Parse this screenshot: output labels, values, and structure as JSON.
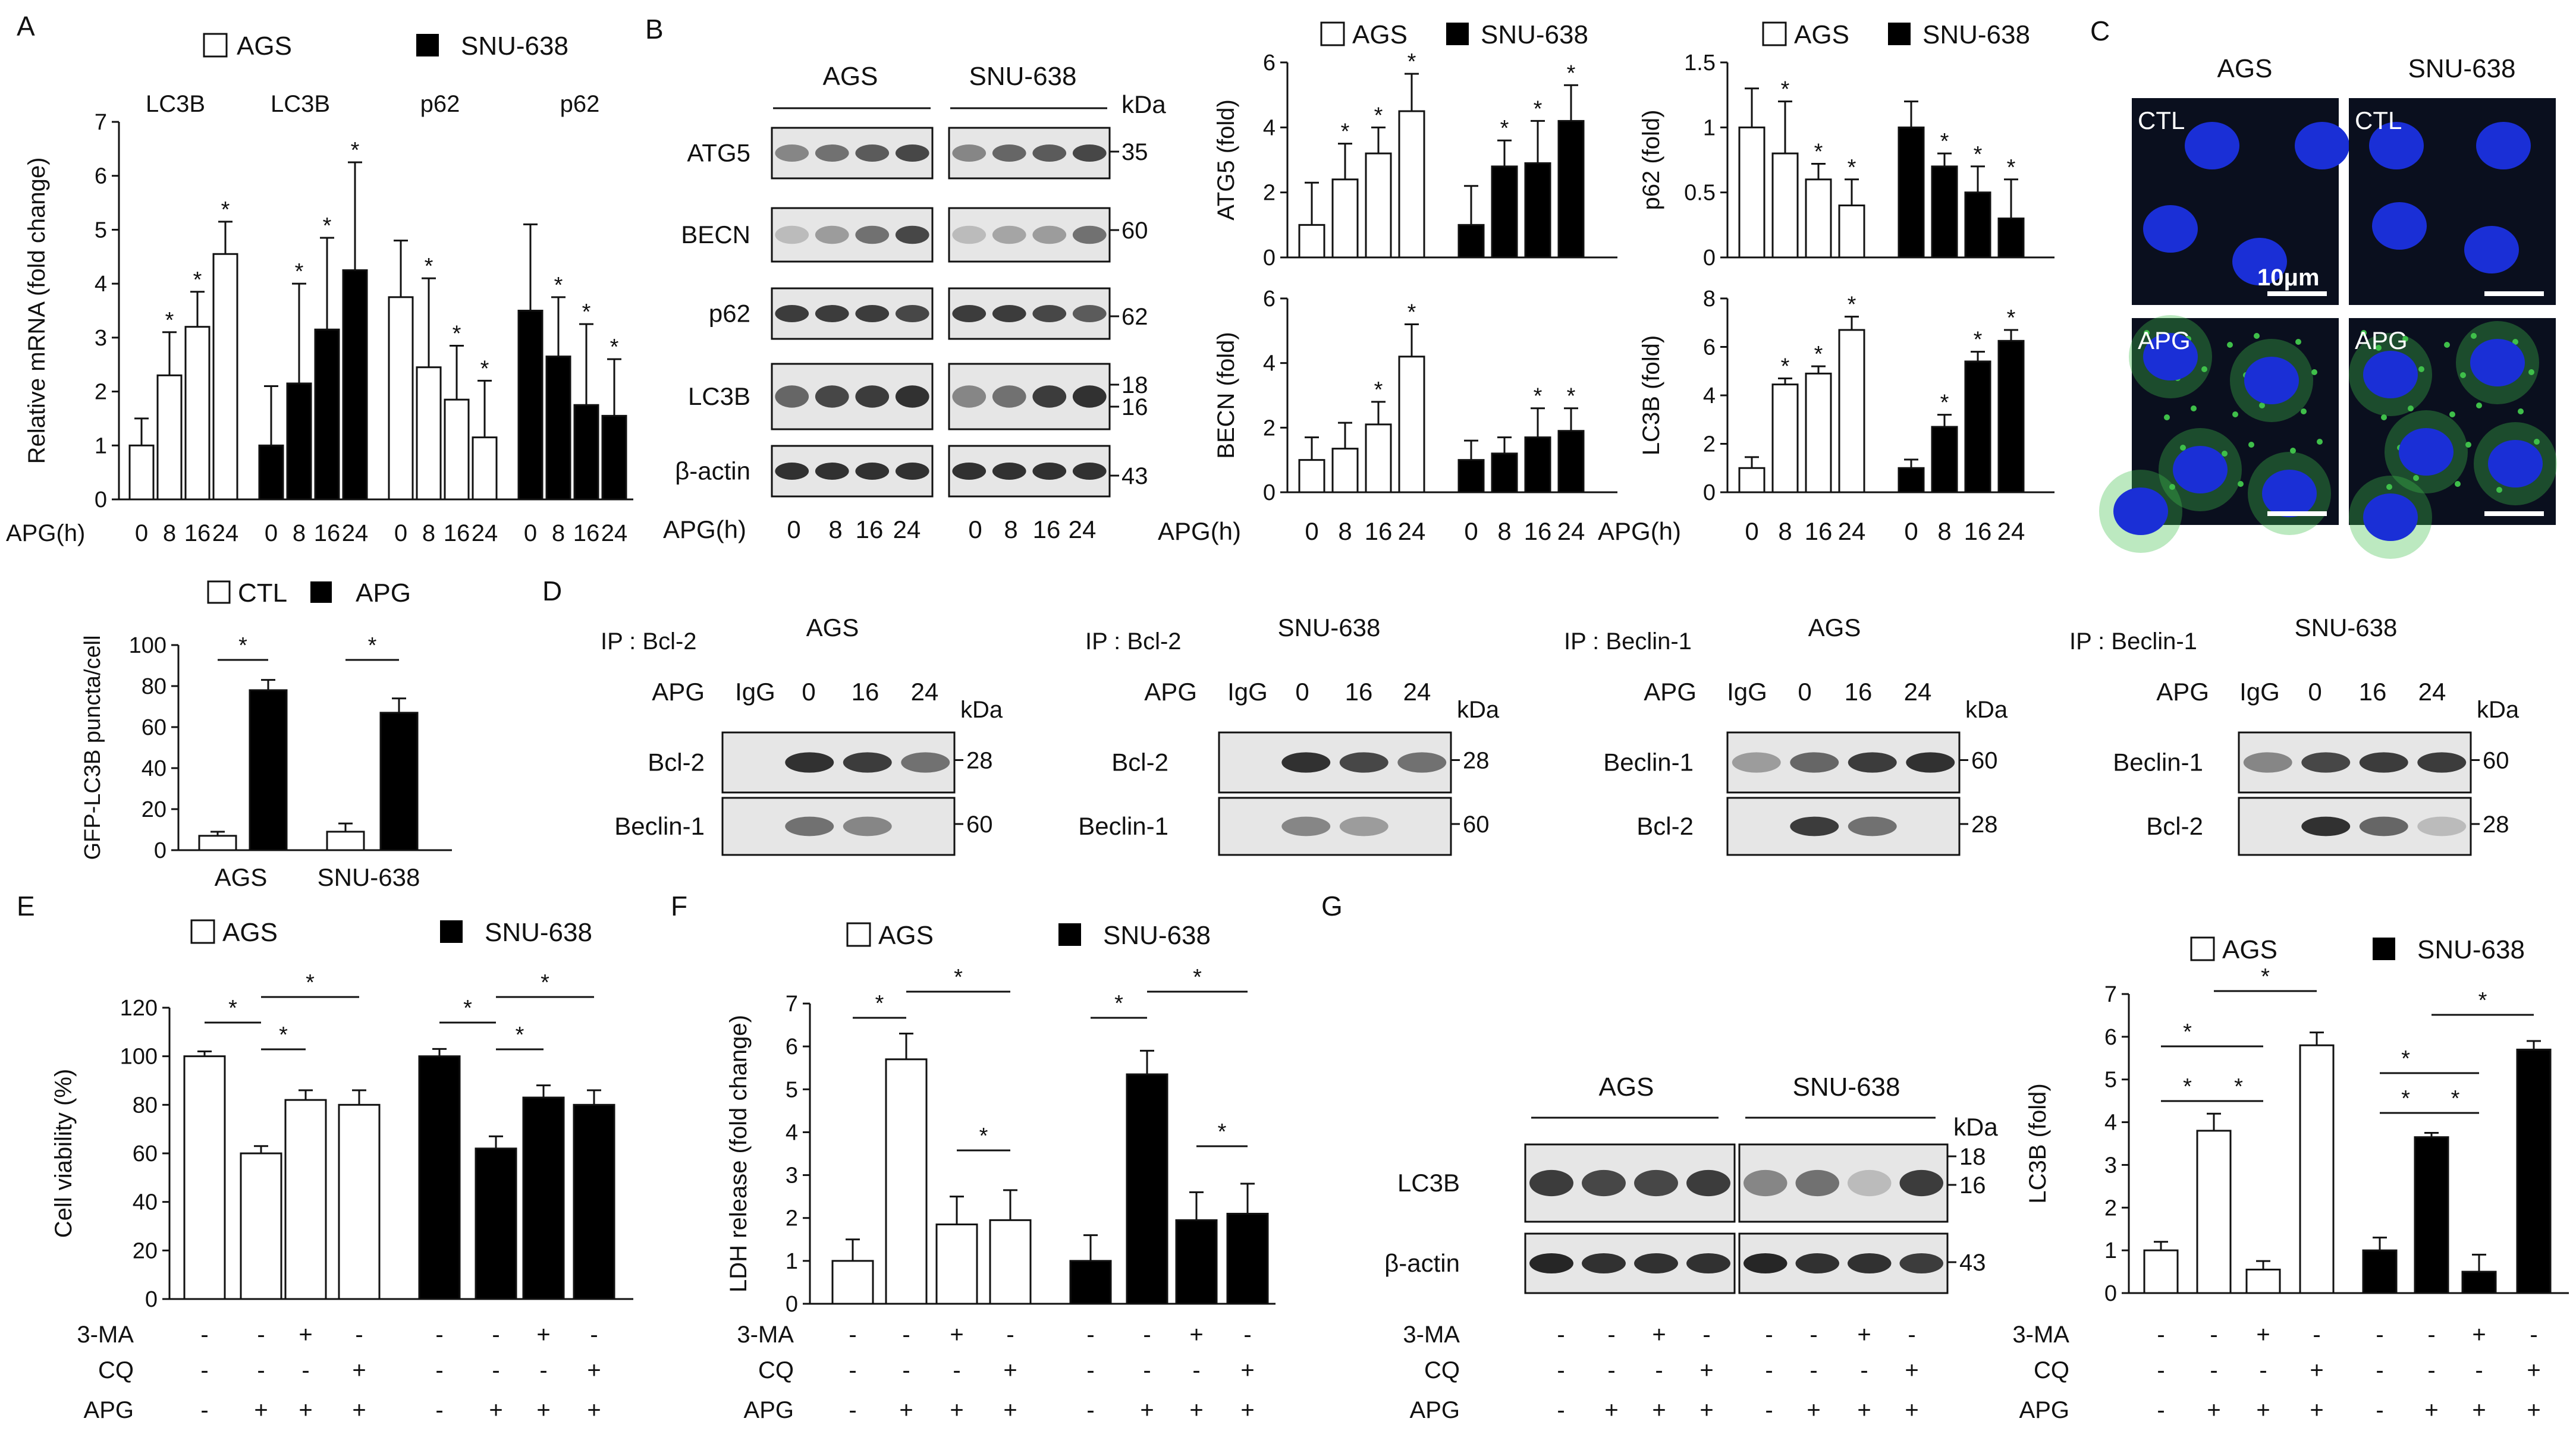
{
  "panel_labels": {
    "A": "A",
    "B": "B",
    "C": "C",
    "D": "D",
    "E": "E",
    "F": "F",
    "G": "G"
  },
  "common": {
    "ags": "AGS",
    "snu": "SNU-638",
    "ctl": "CTL",
    "apg": "APG",
    "apg_h": "APG(h)",
    "kda": "kDa",
    "igg": "IgG",
    "star": "*",
    "plus": "+",
    "minus": "-",
    "ma": "3-MA",
    "cq": "CQ",
    "scale": "10μm"
  },
  "chart_data": [
    {
      "id": "A",
      "type": "bar",
      "title": "",
      "ylabel": "Relative mRNA (fold change)",
      "ylim": [
        0,
        7
      ],
      "yticks": [
        0,
        1,
        2,
        3,
        4,
        5,
        6,
        7
      ],
      "group_titles": [
        "LC3B",
        "LC3B",
        "p62",
        "p62"
      ],
      "categories": [
        "0",
        "8",
        "16",
        "24"
      ],
      "xlabel": "APG(h)",
      "legend": [
        "AGS",
        "SNU-638"
      ],
      "series": [
        {
          "name": "AGS LC3B",
          "fill": "#ffffff",
          "values": [
            1.0,
            2.3,
            3.2,
            4.55
          ],
          "err": [
            0.5,
            0.8,
            0.65,
            0.6
          ],
          "stars": [
            0,
            1,
            1,
            1
          ]
        },
        {
          "name": "SNU-638 LC3B",
          "fill": "#000000",
          "values": [
            1.0,
            2.15,
            3.15,
            4.25
          ],
          "err": [
            1.1,
            1.85,
            1.7,
            2.0
          ],
          "stars": [
            0,
            1,
            1,
            1
          ]
        },
        {
          "name": "AGS p62",
          "fill": "#ffffff",
          "values": [
            3.75,
            2.45,
            1.85,
            1.15
          ],
          "err": [
            1.05,
            1.65,
            1.0,
            1.05
          ],
          "stars": [
            0,
            1,
            1,
            1
          ]
        },
        {
          "name": "SNU-638 p62",
          "fill": "#000000",
          "values": [
            3.5,
            2.65,
            1.75,
            1.55
          ],
          "err": [
            1.6,
            1.1,
            1.5,
            1.05
          ],
          "stars": [
            0,
            1,
            1,
            1
          ]
        }
      ]
    },
    {
      "id": "B-ATG5",
      "type": "bar",
      "ylabel": "ATG5 (fold)",
      "ylim": [
        0,
        6
      ],
      "yticks": [
        0,
        2,
        4,
        6
      ],
      "categories": [
        "0",
        "8",
        "16",
        "24"
      ],
      "xlabel": "APG(h)",
      "legend": [
        "AGS",
        "SNU-638"
      ],
      "series": [
        {
          "name": "AGS",
          "fill": "#ffffff",
          "values": [
            1.0,
            2.4,
            3.2,
            4.5
          ],
          "err": [
            1.3,
            1.1,
            0.8,
            1.15
          ],
          "stars": [
            0,
            1,
            1,
            1
          ]
        },
        {
          "name": "SNU-638",
          "fill": "#000000",
          "values": [
            1.0,
            2.8,
            2.9,
            4.2
          ],
          "err": [
            1.2,
            0.8,
            1.3,
            1.1
          ],
          "stars": [
            0,
            1,
            1,
            1
          ]
        }
      ]
    },
    {
      "id": "B-p62",
      "type": "bar",
      "ylabel": "p62 (fold)",
      "ylim": [
        0,
        1.5
      ],
      "yticks": [
        0,
        0.5,
        1,
        1.5
      ],
      "categories": [
        "0",
        "8",
        "16",
        "24"
      ],
      "xlabel": "",
      "legend": [
        "AGS",
        "SNU-638"
      ],
      "series": [
        {
          "name": "AGS",
          "fill": "#ffffff",
          "values": [
            1.0,
            0.8,
            0.6,
            0.4
          ],
          "err": [
            0.3,
            0.4,
            0.12,
            0.2
          ],
          "stars": [
            0,
            1,
            1,
            1
          ]
        },
        {
          "name": "SNU-638",
          "fill": "#000000",
          "values": [
            1.0,
            0.7,
            0.5,
            0.3
          ],
          "err": [
            0.2,
            0.1,
            0.2,
            0.3
          ],
          "stars": [
            0,
            1,
            1,
            1
          ]
        }
      ]
    },
    {
      "id": "B-BECN",
      "type": "bar",
      "ylabel": "BECN (fold)",
      "ylim": [
        0,
        6
      ],
      "yticks": [
        0,
        2,
        4,
        6
      ],
      "categories": [
        "0",
        "8",
        "16",
        "24"
      ],
      "xlabel": "APG(h)",
      "legend": [],
      "series": [
        {
          "name": "AGS",
          "fill": "#ffffff",
          "values": [
            1.0,
            1.35,
            2.1,
            4.2
          ],
          "err": [
            0.7,
            0.8,
            0.7,
            1.0
          ],
          "stars": [
            0,
            0,
            1,
            1
          ]
        },
        {
          "name": "SNU-638",
          "fill": "#000000",
          "values": [
            1.0,
            1.2,
            1.7,
            1.9
          ],
          "err": [
            0.6,
            0.5,
            0.9,
            0.7
          ],
          "stars": [
            0,
            0,
            1,
            1
          ]
        }
      ]
    },
    {
      "id": "B-LC3B",
      "type": "bar",
      "ylabel": "LC3B (fold)",
      "ylim": [
        0,
        8
      ],
      "yticks": [
        0,
        2,
        4,
        6,
        8
      ],
      "categories": [
        "0",
        "8",
        "16",
        "24"
      ],
      "xlabel": "APG(h)",
      "legend": [],
      "series": [
        {
          "name": "AGS",
          "fill": "#ffffff",
          "values": [
            1.0,
            4.45,
            4.9,
            6.7
          ],
          "err": [
            0.45,
            0.25,
            0.3,
            0.55
          ],
          "stars": [
            0,
            1,
            1,
            1
          ]
        },
        {
          "name": "SNU-638",
          "fill": "#000000",
          "values": [
            1.0,
            2.7,
            5.4,
            6.25
          ],
          "err": [
            0.35,
            0.5,
            0.4,
            0.45
          ],
          "stars": [
            0,
            1,
            1,
            1
          ]
        }
      ]
    },
    {
      "id": "C-quant",
      "type": "bar",
      "ylabel": "GFP-LC3B puncta/cell",
      "ylim": [
        0,
        100
      ],
      "yticks": [
        0,
        20,
        40,
        60,
        80,
        100
      ],
      "categories": [
        "AGS",
        "SNU-638"
      ],
      "legend": [
        "CTL",
        "APG"
      ],
      "series": [
        {
          "name": "CTL",
          "fill": "#ffffff",
          "values": [
            7,
            9
          ],
          "err": [
            2,
            4
          ]
        },
        {
          "name": "APG",
          "fill": "#000000",
          "values": [
            78,
            67
          ],
          "err": [
            5,
            7
          ]
        }
      ]
    },
    {
      "id": "E",
      "type": "bar",
      "ylabel": "Cell viability (%)",
      "ylim": [
        0,
        120
      ],
      "yticks": [
        0,
        20,
        40,
        60,
        80,
        100,
        120
      ],
      "legend": [
        "AGS",
        "SNU-638"
      ],
      "series": [
        {
          "name": "AGS",
          "fill": "#ffffff",
          "values": [
            100,
            60,
            82,
            80
          ],
          "err": [
            2,
            3,
            4,
            6
          ]
        },
        {
          "name": "SNU-638",
          "fill": "#000000",
          "values": [
            100,
            62,
            83,
            80
          ],
          "err": [
            3,
            5,
            5,
            6
          ]
        }
      ],
      "rows": {
        "3-MA": [
          "-",
          "-",
          "+",
          "-"
        ],
        "CQ": [
          "-",
          "-",
          "-",
          "+"
        ],
        "APG": [
          "-",
          "+",
          "+",
          "+"
        ]
      }
    },
    {
      "id": "F",
      "type": "bar",
      "ylabel": "LDH release (fold change)",
      "ylim": [
        0,
        7
      ],
      "yticks": [
        0,
        1,
        2,
        3,
        4,
        5,
        6,
        7
      ],
      "legend": [
        "AGS",
        "SNU-638"
      ],
      "series": [
        {
          "name": "AGS",
          "fill": "#ffffff",
          "values": [
            1.0,
            5.7,
            1.85,
            1.95
          ],
          "err": [
            0.5,
            0.6,
            0.65,
            0.7
          ]
        },
        {
          "name": "SNU-638",
          "fill": "#000000",
          "values": [
            1.0,
            5.35,
            1.95,
            2.1
          ],
          "err": [
            0.6,
            0.55,
            0.65,
            0.7
          ]
        }
      ],
      "rows": {
        "3-MA": [
          "-",
          "-",
          "+",
          "-"
        ],
        "CQ": [
          "-",
          "-",
          "-",
          "+"
        ],
        "APG": [
          "-",
          "+",
          "+",
          "+"
        ]
      }
    },
    {
      "id": "G",
      "type": "bar",
      "ylabel": "LC3B (fold)",
      "ylim": [
        0,
        7
      ],
      "yticks": [
        0,
        1,
        2,
        3,
        4,
        5,
        6,
        7
      ],
      "legend": [
        "AGS",
        "SNU-638"
      ],
      "series": [
        {
          "name": "AGS",
          "fill": "#ffffff",
          "values": [
            1.0,
            3.8,
            0.55,
            5.8
          ],
          "err": [
            0.2,
            0.4,
            0.2,
            0.3
          ]
        },
        {
          "name": "SNU-638",
          "fill": "#000000",
          "values": [
            1.0,
            3.65,
            0.5,
            5.7
          ],
          "err": [
            0.3,
            0.1,
            0.4,
            0.2
          ]
        }
      ],
      "rows": {
        "3-MA": [
          "-",
          "-",
          "+",
          "-"
        ],
        "CQ": [
          "-",
          "-",
          "-",
          "+"
        ],
        "APG": [
          "-",
          "+",
          "+",
          "+"
        ]
      }
    }
  ],
  "blotB": {
    "proteins": [
      "ATG5",
      "BECN",
      "p62",
      "LC3B",
      "β-actin"
    ],
    "markers": [
      "35",
      "60",
      "62",
      "18",
      "16",
      "43"
    ],
    "times": [
      "0",
      "8",
      "16",
      "24"
    ]
  },
  "blotD": [
    {
      "ip": "IP : Bcl-2",
      "cell": "AGS",
      "rows": [
        "Bcl-2",
        "Beclin-1"
      ],
      "markers": [
        "28",
        "60"
      ]
    },
    {
      "ip": "IP : Bcl-2",
      "cell": "SNU-638",
      "rows": [
        "Bcl-2",
        "Beclin-1"
      ],
      "markers": [
        "28",
        "60"
      ]
    },
    {
      "ip": "IP : Beclin-1",
      "cell": "AGS",
      "rows": [
        "Beclin-1",
        "Bcl-2"
      ],
      "markers": [
        "60",
        "28"
      ]
    },
    {
      "ip": "IP : Beclin-1",
      "cell": "SNU-638",
      "rows": [
        "Beclin-1",
        "Bcl-2"
      ],
      "markers": [
        "60",
        "28"
      ]
    }
  ],
  "blotD_lanes": [
    "IgG",
    "0",
    "16",
    "24"
  ],
  "blotG": {
    "rows": [
      "LC3B",
      "β-actin"
    ],
    "markers": [
      "18",
      "16",
      "43"
    ]
  },
  "colors": {
    "nucleus": "#1a2fd6",
    "gfp": "#3fbf4a",
    "bg_dark": "#0a0f1e"
  }
}
